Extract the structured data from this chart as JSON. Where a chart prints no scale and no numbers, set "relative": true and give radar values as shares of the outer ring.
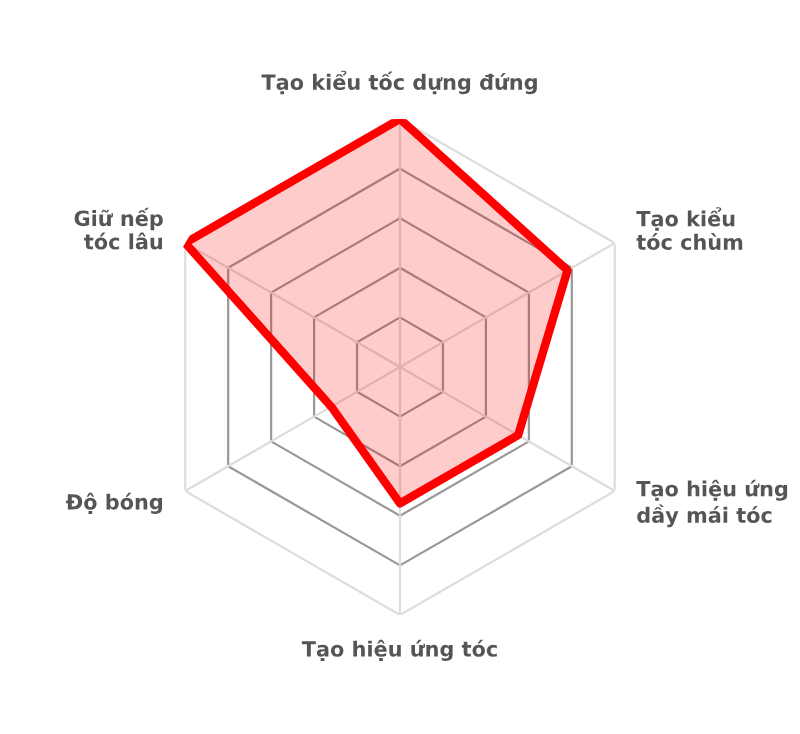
{
  "chart_data": {
    "type": "radar",
    "relative": true,
    "categories": [
      "Tạo kiểu tốc dựng đứng",
      "Tạo kiểu\ntóc chùm",
      "Tạo hiệu ứng\ndầy mái tóc",
      "Tạo hiệu ứng tóc",
      "Độ bóng",
      "Giữ nếp\ntóc lâu"
    ],
    "series": [
      {
        "color": "#ff0000",
        "values": [
          1.0,
          0.78,
          0.55,
          0.55,
          0.32,
          1.0
        ]
      }
    ],
    "grid": true
  }
}
